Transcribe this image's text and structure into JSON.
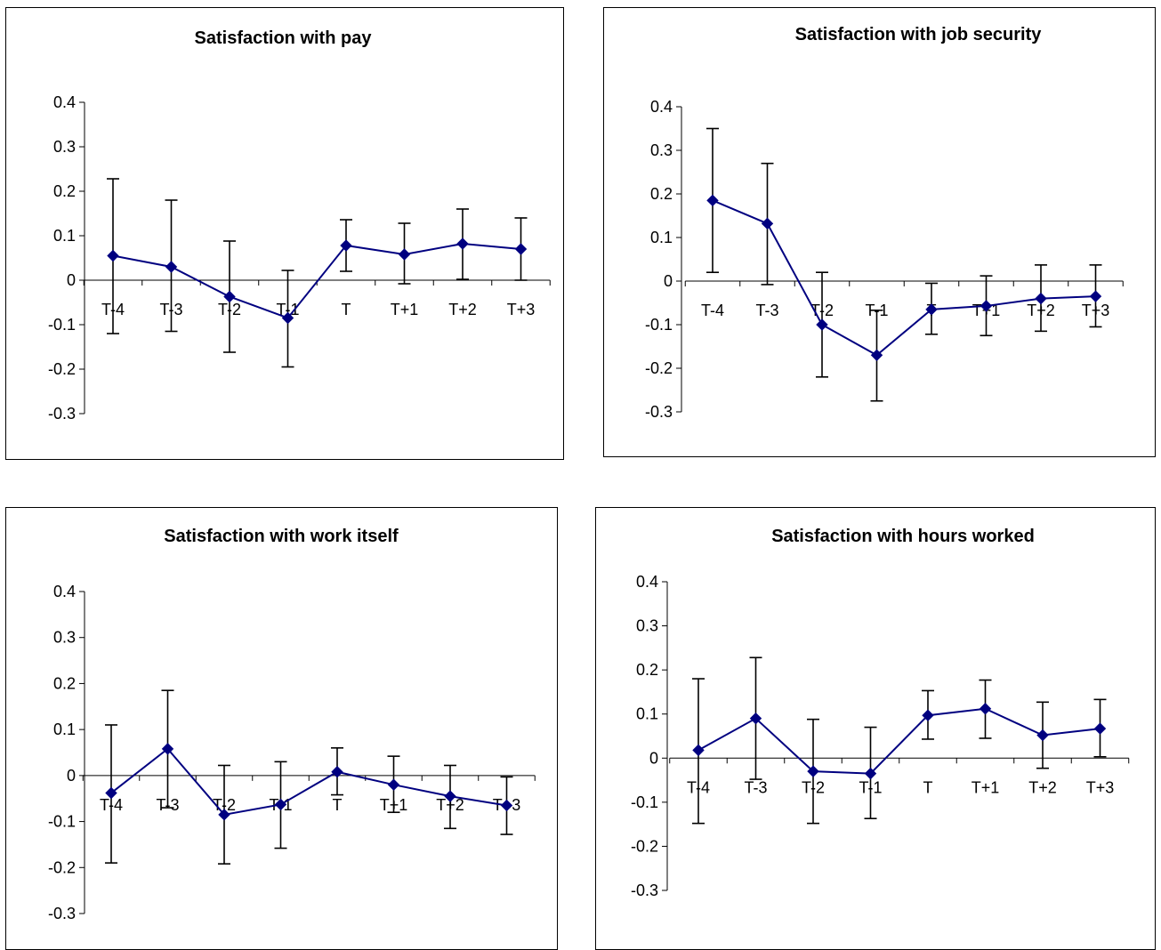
{
  "chart_data": [
    {
      "type": "line",
      "title": "Satisfaction with pay",
      "categories": [
        "T-4",
        "T-3",
        "T-2",
        "T-1",
        "T",
        "T+1",
        "T+2",
        "T+3"
      ],
      "values": [
        0.055,
        0.03,
        -0.037,
        -0.085,
        0.078,
        0.058,
        0.082,
        0.07
      ],
      "error_low": [
        -0.12,
        -0.115,
        -0.162,
        -0.195,
        0.02,
        -0.008,
        0.002,
        0.0
      ],
      "error_high": [
        0.228,
        0.18,
        0.088,
        0.022,
        0.136,
        0.128,
        0.16,
        0.14
      ],
      "ylim": [
        -0.3,
        0.4
      ],
      "yticks": [
        "0.4",
        "0.3",
        "0.2",
        "0.1",
        "0",
        "-0.1",
        "-0.2",
        "-0.3"
      ],
      "color": "#000080"
    },
    {
      "type": "line",
      "title": "Satisfaction with job security",
      "categories": [
        "T-4",
        "T-3",
        "T-2",
        "T-1",
        "T",
        "T+1",
        "T+2",
        "T+3"
      ],
      "values": [
        0.185,
        0.132,
        -0.1,
        -0.17,
        -0.065,
        -0.057,
        -0.04,
        -0.035
      ],
      "error_low": [
        0.02,
        -0.008,
        -0.22,
        -0.275,
        -0.122,
        -0.125,
        -0.115,
        -0.105
      ],
      "error_high": [
        0.35,
        0.27,
        0.02,
        -0.067,
        -0.005,
        0.012,
        0.037,
        0.037
      ],
      "ylim": [
        -0.3,
        0.4
      ],
      "yticks": [
        "0.4",
        "0.3",
        "0.2",
        "0.1",
        "0",
        "-0.1",
        "-0.2",
        "-0.3"
      ],
      "color": "#000080"
    },
    {
      "type": "line",
      "title": "Satisfaction with work itself",
      "categories": [
        "T-4",
        "T-3",
        "T-2",
        "T-1",
        "T",
        "T+1",
        "T+2",
        "T+3"
      ],
      "values": [
        -0.038,
        0.058,
        -0.085,
        -0.063,
        0.008,
        -0.02,
        -0.045,
        -0.065
      ],
      "error_low": [
        -0.19,
        -0.07,
        -0.192,
        -0.158,
        -0.042,
        -0.08,
        -0.115,
        -0.128
      ],
      "error_high": [
        0.11,
        0.185,
        0.022,
        0.03,
        0.06,
        0.042,
        0.022,
        -0.003
      ],
      "ylim": [
        -0.3,
        0.4
      ],
      "yticks": [
        "0.4",
        "0.3",
        "0.2",
        "0.1",
        "0",
        "-0.1",
        "-0.2",
        "-0.3"
      ],
      "color": "#000080"
    },
    {
      "type": "line",
      "title": "Satisfaction with hours worked",
      "categories": [
        "T-4",
        "T-3",
        "T-2",
        "T-1",
        "T",
        "T+1",
        "T+2",
        "T+3"
      ],
      "values": [
        0.018,
        0.09,
        -0.03,
        -0.035,
        0.097,
        0.112,
        0.052,
        0.067
      ],
      "error_low": [
        -0.148,
        -0.048,
        -0.148,
        -0.137,
        0.043,
        0.045,
        -0.023,
        0.003
      ],
      "error_high": [
        0.18,
        0.228,
        0.088,
        0.07,
        0.153,
        0.177,
        0.127,
        0.133
      ],
      "ylim": [
        -0.3,
        0.4
      ],
      "yticks": [
        "0.4",
        "0.3",
        "0.2",
        "0.1",
        "0",
        "-0.1",
        "-0.2",
        "-0.3"
      ],
      "color": "#000080"
    }
  ]
}
